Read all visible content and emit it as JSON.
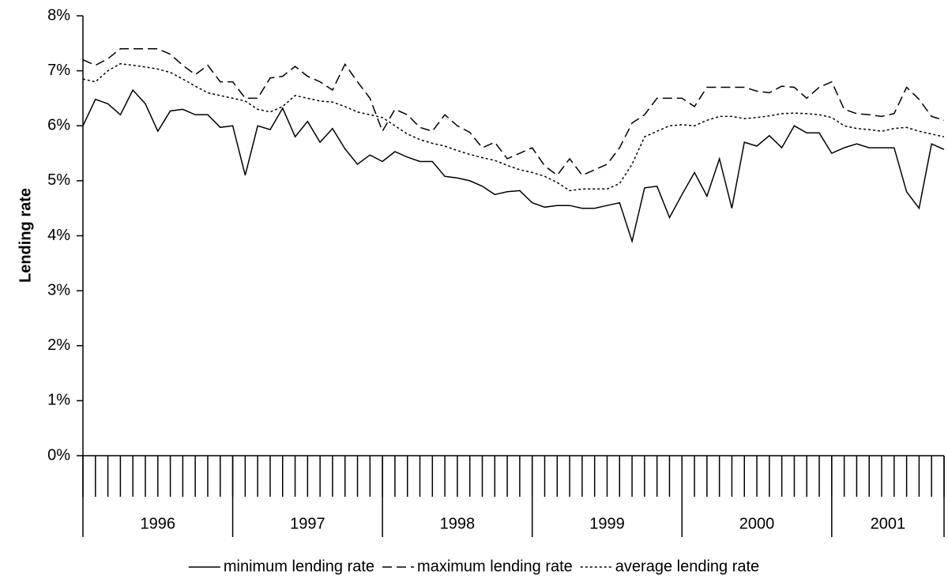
{
  "chart_data": {
    "type": "line",
    "y_label": "Lending rate",
    "categories": [
      null,
      null,
      null,
      null,
      null,
      null,
      null,
      null,
      null,
      null,
      null,
      null,
      null,
      null,
      null,
      null,
      null,
      null,
      null,
      null,
      null,
      null,
      null,
      null,
      null,
      null,
      null,
      null,
      null,
      null,
      null,
      null,
      null,
      null,
      null,
      null,
      null,
      null,
      null,
      null,
      null,
      null,
      null,
      null,
      null,
      null,
      null,
      null,
      null,
      null,
      null,
      null,
      null,
      null,
      null,
      null,
      null,
      null,
      null,
      null,
      null,
      null,
      null,
      null,
      null,
      null,
      null,
      null,
      null,
      null
    ],
    "groups": [
      {
        "label": "1996",
        "months": 12
      },
      {
        "label": "1997",
        "months": 12
      },
      {
        "label": "1998",
        "months": 12
      },
      {
        "label": "1999",
        "months": 12
      },
      {
        "label": "2000",
        "months": 12
      },
      {
        "label": "2001",
        "months": 10
      }
    ],
    "series": [
      {
        "name": "minimum lending rate",
        "color": "#000000",
        "dash": "solid",
        "values": [
          6.0,
          6.48,
          6.4,
          6.2,
          6.65,
          6.4,
          5.9,
          6.27,
          6.3,
          6.2,
          6.2,
          5.97,
          6.0,
          5.1,
          6.0,
          5.93,
          6.32,
          5.8,
          6.08,
          5.7,
          5.95,
          5.58,
          5.3,
          5.47,
          5.35,
          5.53,
          5.43,
          5.35,
          5.35,
          5.08,
          5.05,
          5.0,
          4.9,
          4.75,
          4.8,
          4.82,
          4.6,
          4.52,
          4.55,
          4.55,
          4.5,
          4.5,
          4.55,
          4.6,
          3.9,
          4.87,
          4.9,
          4.33,
          4.75,
          5.15,
          4.72,
          5.4,
          4.5,
          5.7,
          5.63,
          5.82,
          5.6,
          6.0,
          5.87,
          5.87,
          5.5,
          5.6,
          5.67,
          5.6,
          5.6,
          5.6,
          4.8,
          4.5,
          5.67,
          5.57
        ]
      },
      {
        "name": "maximum lending rate",
        "color": "#000000",
        "dash": "dashed",
        "values": [
          7.2,
          7.1,
          7.22,
          7.4,
          7.4,
          7.4,
          7.4,
          7.3,
          7.1,
          6.93,
          7.1,
          6.8,
          6.8,
          6.5,
          6.5,
          6.87,
          6.9,
          7.08,
          6.9,
          6.8,
          6.65,
          7.12,
          6.8,
          6.5,
          5.9,
          6.3,
          6.2,
          5.97,
          5.9,
          6.2,
          6.0,
          5.88,
          5.6,
          5.7,
          5.4,
          5.5,
          5.6,
          5.27,
          5.1,
          5.4,
          5.1,
          5.2,
          5.3,
          5.6,
          6.05,
          6.2,
          6.5,
          6.5,
          6.5,
          6.35,
          6.7,
          6.7,
          6.7,
          6.7,
          6.63,
          6.6,
          6.72,
          6.7,
          6.5,
          6.7,
          6.8,
          6.3,
          6.22,
          6.2,
          6.17,
          6.22,
          6.7,
          6.48,
          6.17,
          6.1
        ]
      },
      {
        "name": "average lending rate",
        "color": "#000000",
        "dash": "dotted",
        "values": [
          6.85,
          6.8,
          7.0,
          7.13,
          7.1,
          7.07,
          7.03,
          6.97,
          6.85,
          6.72,
          6.6,
          6.55,
          6.5,
          6.45,
          6.3,
          6.25,
          6.35,
          6.55,
          6.5,
          6.45,
          6.43,
          6.35,
          6.25,
          6.2,
          6.15,
          6.0,
          5.85,
          5.75,
          5.68,
          5.63,
          5.55,
          5.48,
          5.42,
          5.37,
          5.28,
          5.2,
          5.15,
          5.08,
          4.97,
          4.82,
          4.85,
          4.85,
          4.85,
          4.95,
          5.3,
          5.8,
          5.9,
          6.0,
          6.02,
          6.0,
          6.1,
          6.17,
          6.17,
          6.13,
          6.15,
          6.18,
          6.22,
          6.23,
          6.22,
          6.2,
          6.15,
          6.0,
          5.95,
          5.93,
          5.9,
          5.95,
          5.97,
          5.9,
          5.85,
          5.8
        ]
      }
    ],
    "ylim": [
      0,
      8
    ],
    "yticks": [
      {
        "value": 0,
        "label": "0%"
      },
      {
        "value": 1,
        "label": "1%"
      },
      {
        "value": 2,
        "label": "2%"
      },
      {
        "value": 3,
        "label": "3%"
      },
      {
        "value": 4,
        "label": "4%"
      },
      {
        "value": 5,
        "label": "5%"
      },
      {
        "value": 6,
        "label": "6%"
      },
      {
        "value": 7,
        "label": "7%"
      },
      {
        "value": 8,
        "label": "8%"
      }
    ],
    "grid": false,
    "legend": "bottom"
  }
}
